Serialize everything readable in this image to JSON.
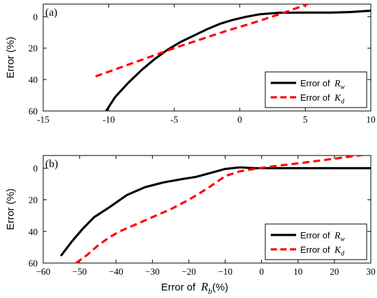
{
  "chart_data": [
    {
      "type": "line",
      "panel_label": "(a)",
      "xlabel": "",
      "ylabel": "Error (%)",
      "xlim": [
        -15,
        10
      ],
      "ylim": [
        -60,
        8
      ],
      "xticks": [
        -15,
        -10,
        -5,
        0,
        5,
        10
      ],
      "yticks": [
        0,
        -20,
        -40,
        -60
      ],
      "ytick_labels": [
        "0",
        "20",
        "40",
        "60"
      ],
      "xtick_labels": [
        "-15",
        "-10",
        "-5",
        "0",
        "5",
        "10"
      ],
      "legend_position": "bottom-right",
      "series": [
        {
          "name_prefix": "Error of",
          "name_var": "R",
          "name_sub": "w",
          "color": "#000000",
          "dash": "solid",
          "x": [
            -10.2,
            -9.5,
            -8.5,
            -7.5,
            -6.5,
            -5.5,
            -4.5,
            -3.5,
            -2.5,
            -1.5,
            -0.5,
            0.5,
            1.5,
            3.0,
            5.0,
            7.0,
            8.5,
            10.0
          ],
          "y": [
            -60,
            -51,
            -42,
            -34,
            -27,
            -21,
            -16,
            -12,
            -8,
            -4.5,
            -2,
            0,
            1.5,
            2.5,
            2.6,
            2.6,
            3.0,
            3.8
          ]
        },
        {
          "name_prefix": "Error of",
          "name_var": "K",
          "name_sub": "d",
          "color": "#ff0000",
          "dash": "dashed",
          "x": [
            -11.0,
            -9.0,
            -7.0,
            -5.0,
            -3.0,
            -1.0,
            1.0,
            3.0,
            5.2
          ],
          "y": [
            -38,
            -32,
            -26,
            -20,
            -14.5,
            -9,
            -4,
            1.5,
            8
          ]
        }
      ]
    },
    {
      "type": "line",
      "panel_label": "(b)",
      "xlabel_prefix": "Error of",
      "xlabel_var": "R",
      "xlabel_sub": "b",
      "xlabel_suffix": "(%)",
      "ylabel": "Error (%)",
      "xlim": [
        -60,
        30
      ],
      "ylim": [
        -60,
        8
      ],
      "xticks": [
        -60,
        -50,
        -40,
        -30,
        -20,
        -10,
        0,
        10,
        20,
        30
      ],
      "xtick_labels": [
        "−60",
        "−50",
        "−40",
        "−30",
        "−20",
        "−10",
        "0",
        "10",
        "20",
        "30"
      ],
      "yticks": [
        0,
        -20,
        -40,
        -60
      ],
      "ytick_labels": [
        "0",
        "20",
        "40",
        "60"
      ],
      "legend_position": "bottom-right",
      "series": [
        {
          "name_prefix": "Error of",
          "name_var": "R",
          "name_sub": "w",
          "color": "#000000",
          "dash": "solid",
          "x": [
            -55,
            -52,
            -49,
            -46,
            -42,
            -37,
            -32,
            -27,
            -22,
            -18,
            -14,
            -10,
            -6,
            -2,
            0,
            10,
            20,
            30
          ],
          "y": [
            -55,
            -46,
            -38,
            -31,
            -25,
            -17,
            -12,
            -9,
            -7,
            -5.5,
            -3,
            -0.5,
            0.5,
            0,
            0,
            0,
            0,
            0
          ]
        },
        {
          "name_prefix": "Error of",
          "name_var": "K",
          "name_sub": "d",
          "color": "#ff0000",
          "dash": "dashed",
          "x": [
            -51,
            -48,
            -45,
            -42,
            -39,
            -35,
            -30,
            -25,
            -20,
            -15,
            -10,
            -6,
            -2,
            2,
            6,
            10,
            15,
            20,
            25,
            30
          ],
          "y": [
            -60,
            -55,
            -49,
            -44,
            -40,
            -36,
            -31,
            -26,
            -20,
            -13,
            -5,
            -2,
            -0.5,
            0.8,
            2,
            3,
            4.5,
            6,
            7.5,
            9
          ]
        }
      ]
    }
  ]
}
